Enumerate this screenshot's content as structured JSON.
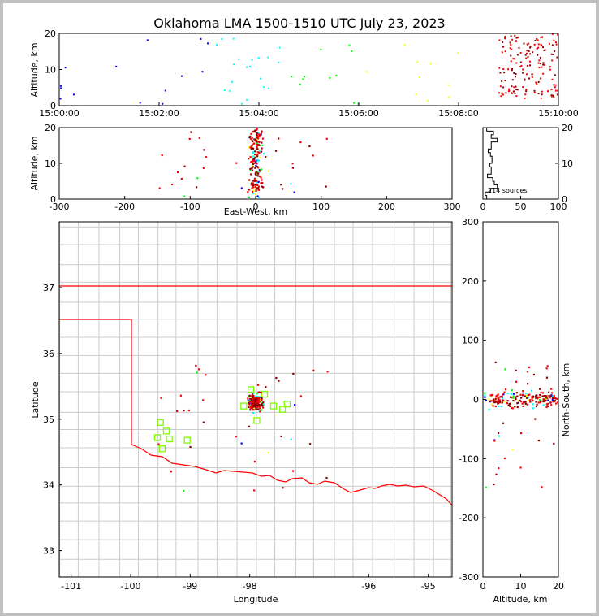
{
  "chart_data": [
    {
      "type": "scatter",
      "panel": "altitude-vs-time",
      "title": "Oklahoma LMA 1500-1510 UTC July 23, 2023",
      "ylabel": "Altitude, km",
      "xlabel": "",
      "xlim": [
        "15:00:00",
        "15:10:00"
      ],
      "xticks": [
        "15:00:00",
        "15:02:00",
        "15:04:00",
        "15:06:00",
        "15:08:00",
        "15:10:00"
      ],
      "ylim": [
        0,
        20
      ],
      "yticks": [
        "0",
        "10",
        "20"
      ],
      "color_by": "time (blue early → red late)"
    },
    {
      "type": "scatter",
      "panel": "altitude-vs-east-west",
      "xlabel": "East-West, km",
      "ylabel": "Altitude, km",
      "xlim": [
        -300,
        300
      ],
      "xticks": [
        "-300",
        "-200",
        "-100",
        "0",
        "100",
        "200",
        "300"
      ],
      "ylim": [
        0,
        20
      ],
      "yticks": [
        "0",
        "10",
        "20"
      ]
    },
    {
      "type": "histogram",
      "panel": "altitude-histogram",
      "annotation": "214 sources",
      "xlim": [
        0,
        100
      ],
      "xticks": [
        "0",
        "50",
        "100"
      ],
      "ylim": [
        0,
        20
      ],
      "yticks": [
        "0",
        "10",
        "20"
      ]
    },
    {
      "type": "map",
      "panel": "plan-view",
      "xlabel": "Longitude",
      "ylabel": "Latitude",
      "xlim": [
        -101.2,
        -94.6
      ],
      "ylim": [
        32.6,
        38.0
      ],
      "xticks": [
        "-101",
        "-100",
        "-99",
        "-98",
        "-96",
        "-95"
      ],
      "yticks": [
        "33",
        "34",
        "35",
        "36",
        "37"
      ],
      "stations_note": "green squares = LMA stations"
    },
    {
      "type": "scatter",
      "panel": "north-south-vs-altitude",
      "xlabel": "Altitude, km",
      "ylabel": "North-South, km",
      "xlim": [
        0,
        20
      ],
      "xticks": [
        "0",
        "10",
        "20"
      ],
      "ylim": [
        -300,
        300
      ],
      "yticks": [
        "-300",
        "-200",
        "-100",
        "0",
        "100",
        "200",
        "300"
      ]
    }
  ],
  "colors": {
    "early": "#0000ff",
    "mid1": "#00ffff",
    "mid2": "#00ff00",
    "mid3": "#ffff00",
    "late": "#ff0000",
    "dense": "#8b0000",
    "boundary": "#ff0000",
    "county": "#cccccc",
    "station": "#7cfc00"
  }
}
